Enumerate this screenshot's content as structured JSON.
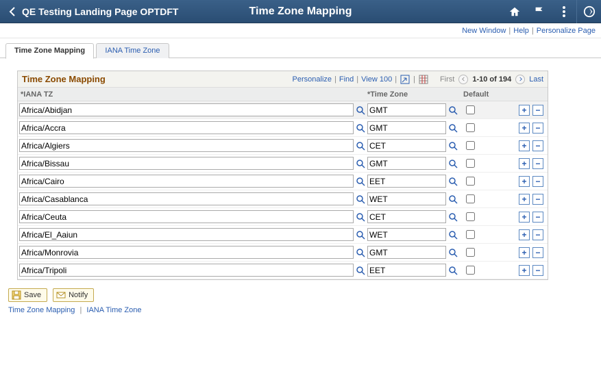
{
  "header": {
    "breadcrumb": "QE Testing Landing Page OPTDFT",
    "title": "Time Zone Mapping"
  },
  "toplinks": {
    "new_window": "New Window",
    "help": "Help",
    "personalize": "Personalize Page"
  },
  "tabs": [
    {
      "label": "Time Zone Mapping",
      "active": true
    },
    {
      "label": "IANA Time Zone",
      "active": false
    }
  ],
  "grid": {
    "title": "Time Zone Mapping",
    "links": {
      "personalize": "Personalize",
      "find": "Find",
      "view100": "View 100"
    },
    "nav": {
      "first": "First",
      "counter": "1-10 of 194",
      "last": "Last"
    },
    "cols": {
      "iana": "*IANA TZ",
      "tz": "*Time Zone",
      "def": "Default"
    },
    "rows": [
      {
        "iana": "Africa/Abidjan",
        "tz": "GMT",
        "def": false
      },
      {
        "iana": "Africa/Accra",
        "tz": "GMT",
        "def": false
      },
      {
        "iana": "Africa/Algiers",
        "tz": "CET",
        "def": false
      },
      {
        "iana": "Africa/Bissau",
        "tz": "GMT",
        "def": false
      },
      {
        "iana": "Africa/Cairo",
        "tz": "EET",
        "def": false
      },
      {
        "iana": "Africa/Casablanca",
        "tz": "WET",
        "def": false
      },
      {
        "iana": "Africa/Ceuta",
        "tz": "CET",
        "def": false
      },
      {
        "iana": "Africa/El_Aaiun",
        "tz": "WET",
        "def": false
      },
      {
        "iana": "Africa/Monrovia",
        "tz": "GMT",
        "def": false
      },
      {
        "iana": "Africa/Tripoli",
        "tz": "EET",
        "def": false
      }
    ]
  },
  "buttons": {
    "save": "Save",
    "notify": "Notify"
  },
  "bottomlinks": {
    "a": "Time Zone Mapping",
    "b": "IANA Time Zone"
  }
}
